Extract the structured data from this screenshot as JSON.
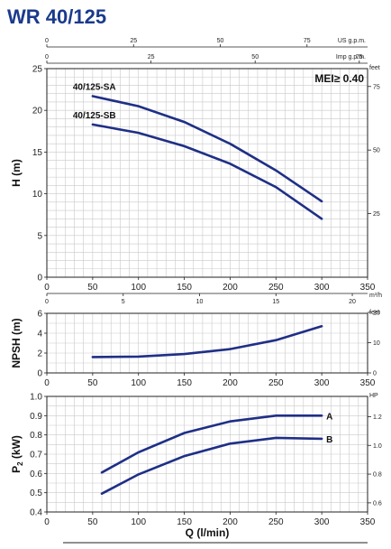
{
  "title": "WR 40/125",
  "chart_data": [
    {
      "id": "head",
      "type": "line",
      "xlabel": "",
      "ylabel": "H (m)",
      "xlim": [
        0,
        350
      ],
      "ylim": [
        0,
        25
      ],
      "x_ticks": [
        0,
        50,
        100,
        150,
        200,
        250,
        300,
        350
      ],
      "y_ticks": [
        0,
        5,
        10,
        15,
        20,
        25
      ],
      "top_axes": [
        {
          "unit": "US g.p.m.",
          "ticks": [
            "0",
            "25",
            "50",
            "75"
          ]
        },
        {
          "unit": "Imp g.p.m.",
          "ticks": [
            "0",
            "25",
            "50",
            "75"
          ]
        }
      ],
      "bottom_secondary_axis": {
        "unit": "m³/h",
        "ticks": [
          "0",
          "5",
          "10",
          "15",
          "20"
        ]
      },
      "right_axis": {
        "unit": "feet",
        "ticks": [
          "75",
          "50",
          "25"
        ]
      },
      "badge": "MEI≥ 0.40",
      "series": [
        {
          "name": "40/125-SA",
          "x": [
            50,
            100,
            150,
            200,
            250,
            300
          ],
          "y": [
            21.7,
            20.5,
            18.6,
            16.0,
            12.8,
            9.1
          ]
        },
        {
          "name": "40/125-SB",
          "x": [
            50,
            100,
            150,
            200,
            250,
            300
          ],
          "y": [
            18.3,
            17.3,
            15.7,
            13.6,
            10.8,
            7.0
          ]
        }
      ],
      "grid": true
    },
    {
      "id": "npsh",
      "type": "line",
      "xlabel": "",
      "ylabel": "NPSH (m)",
      "xlim": [
        0,
        350
      ],
      "ylim": [
        0,
        6
      ],
      "x_ticks": [
        0,
        50,
        100,
        150,
        200,
        250,
        300,
        350
      ],
      "y_ticks": [
        0,
        2,
        4,
        6
      ],
      "right_axis": {
        "unit": "feet",
        "ticks": [
          "20",
          "10",
          "0"
        ]
      },
      "series": [
        {
          "name": "",
          "x": [
            50,
            100,
            150,
            200,
            250,
            300
          ],
          "y": [
            1.6,
            1.65,
            1.9,
            2.4,
            3.3,
            4.7
          ]
        }
      ],
      "grid": true
    },
    {
      "id": "power",
      "type": "line",
      "xlabel": "Q (l/min)",
      "ylabel": "P2 (kW)",
      "xlim": [
        0,
        350
      ],
      "ylim": [
        0.4,
        1.0
      ],
      "x_ticks": [
        0,
        50,
        100,
        150,
        200,
        250,
        300,
        350
      ],
      "y_ticks": [
        "0.4",
        "0.5",
        "0.6",
        "0.7",
        "0.8",
        "0.9",
        "1.0"
      ],
      "right_axis": {
        "unit": "HP",
        "ticks": [
          "1.2",
          "1.0",
          "0.8",
          "0.6"
        ]
      },
      "series": [
        {
          "name": "A",
          "x": [
            60,
            100,
            150,
            200,
            250,
            300
          ],
          "y": [
            0.605,
            0.71,
            0.81,
            0.87,
            0.9,
            0.9
          ]
        },
        {
          "name": "B",
          "x": [
            60,
            100,
            150,
            200,
            250,
            300
          ],
          "y": [
            0.495,
            0.595,
            0.69,
            0.755,
            0.785,
            0.78
          ]
        }
      ],
      "grid": true
    }
  ]
}
